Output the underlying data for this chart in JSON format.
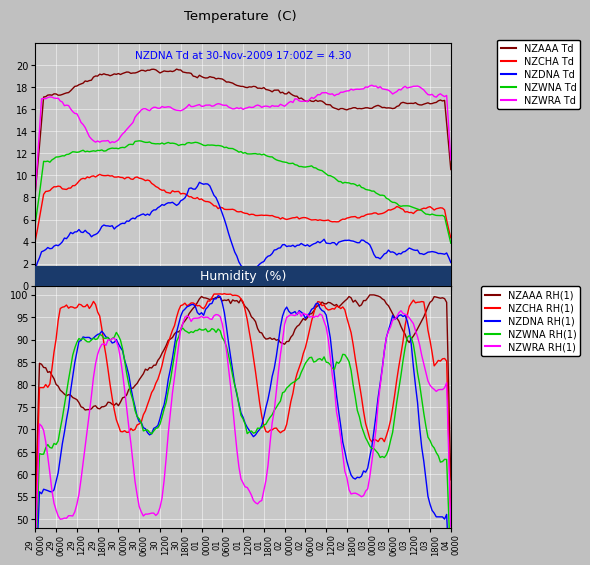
{
  "title_top": "Temperature  (C)",
  "title_bottom": "Humidity  (%)",
  "subtitle": "NZDNA Td at 30-Nov-2009 17:00Z = 4.30",
  "subtitle_color": "#0000FF",
  "bg_color": "#C0C0C0",
  "plot_bg_color": "#C8C8C8",
  "header_color": "#1a3a6b",
  "xtick_labels": [
    "29\n0000",
    "29\n0600",
    "29\n1200",
    "29\n1800",
    "30\n0000",
    "30\n0600",
    "30\n1200",
    "30\n1800",
    "01\n0000",
    "01\n0600",
    "01\n1200",
    "01\n1800",
    "02\n0000",
    "02\n0600",
    "02\n1200",
    "02\n1800",
    "03\n0000",
    "03\n0600",
    "03\n1200",
    "03\n1800",
    "04\n0000"
  ],
  "n_points": 201,
  "temp_ylim": [
    0,
    22
  ],
  "temp_yticks": [
    0,
    2,
    4,
    6,
    8,
    10,
    12,
    14,
    16,
    18,
    20
  ],
  "hum_ylim": [
    48,
    102
  ],
  "hum_yticks": [
    50,
    55,
    60,
    65,
    70,
    75,
    80,
    85,
    90,
    95,
    100
  ],
  "legend_temp": [
    "NZAAA Td",
    "NZCHA Td",
    "NZDNA Td",
    "NZWNA Td",
    "NZWRA Td"
  ],
  "legend_hum": [
    "NZAAA RH(1)",
    "NZCHA RH(1)",
    "NZDNA RH(1)",
    "NZWNA RH(1)",
    "NZWRA RH(1)"
  ],
  "colors": [
    "#800000",
    "#FF0000",
    "#0000FF",
    "#00CC00",
    "#FF00FF"
  ],
  "line_width": 1.0,
  "grid_color": "#FFFFFF",
  "tick_fontsize": 7,
  "legend_fontsize": 7
}
